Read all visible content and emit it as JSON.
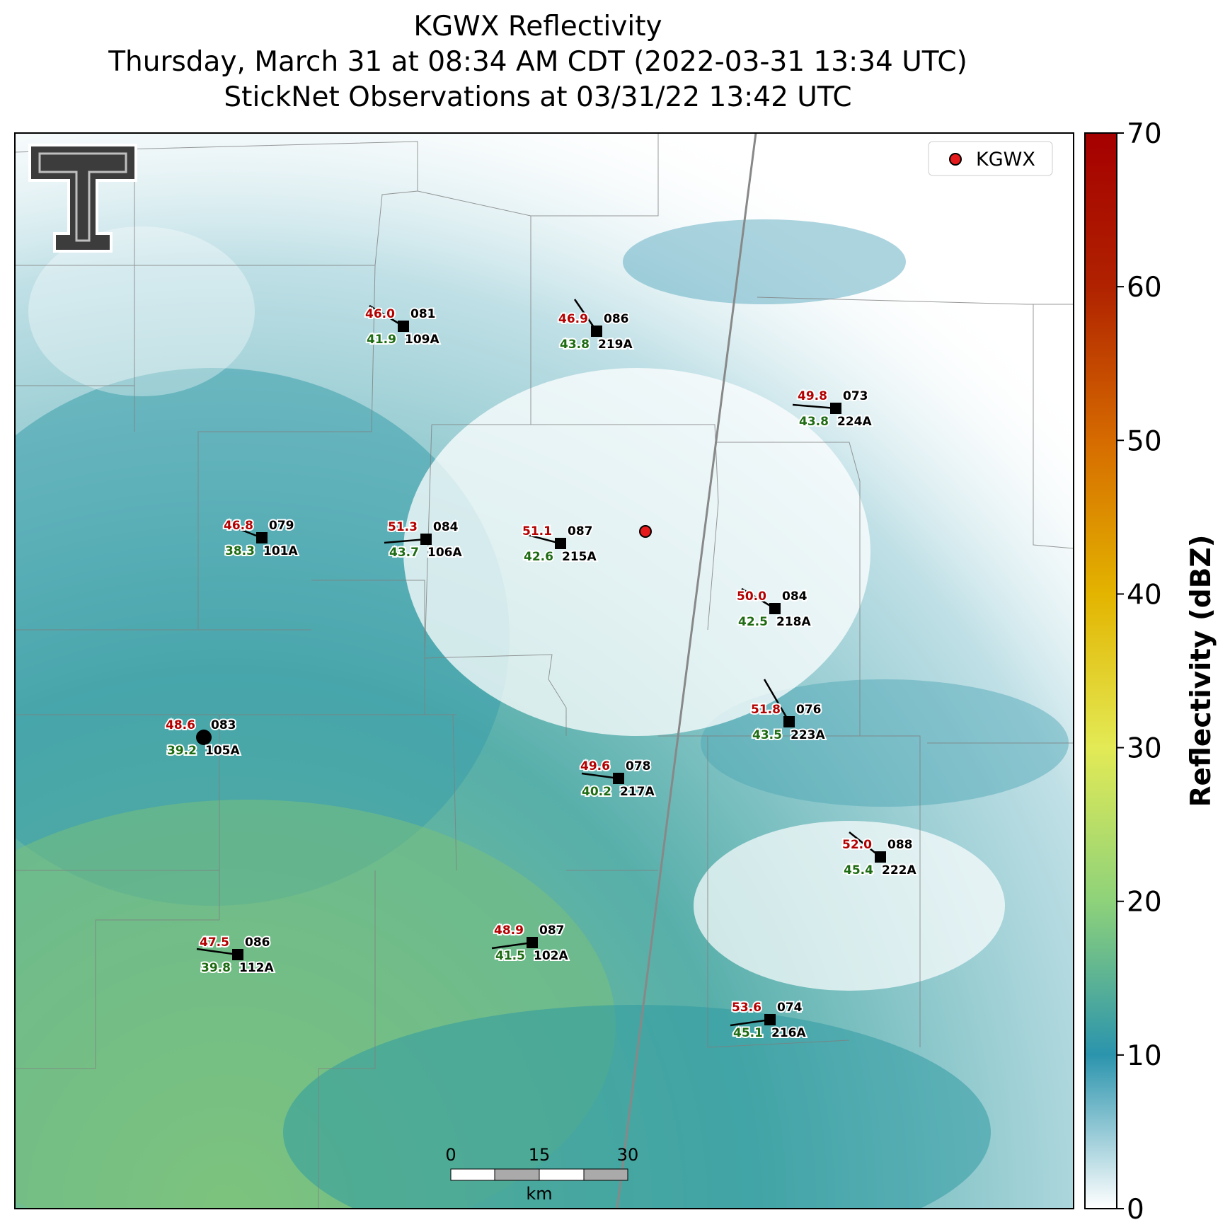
{
  "title": {
    "line1": "KGWX Reflectivity",
    "line2": "Thursday, March 31 at 08:34 AM CDT (2022-03-31 13:34 UTC)",
    "line3": "StickNet Observations at 03/31/22 13:42 UTC"
  },
  "legend": {
    "label": "KGWX"
  },
  "colorbar": {
    "label": "Reflectivity (dBZ)",
    "ticks": [
      "0",
      "10",
      "20",
      "30",
      "40",
      "50",
      "60",
      "70"
    ],
    "colors": [
      "#ffffff",
      "#2b94ad",
      "#8ed27a",
      "#e3ea55",
      "#e3b400",
      "#d66b00",
      "#b02200",
      "#a50000"
    ]
  },
  "scale_bar": {
    "ticks": [
      "0",
      "15",
      "30"
    ],
    "unit": "km"
  },
  "stations": [
    {
      "id": "109A",
      "temp": "46.0",
      "dew": "41.9",
      "dir": "081"
    },
    {
      "id": "219A",
      "temp": "46.9",
      "dew": "43.8",
      "dir": "086"
    },
    {
      "id": "224A",
      "temp": "49.8",
      "dew": "43.8",
      "dir": "073"
    },
    {
      "id": "101A",
      "temp": "46.8",
      "dew": "38.3",
      "dir": "079"
    },
    {
      "id": "106A",
      "temp": "51.3",
      "dew": "43.7",
      "dir": "084"
    },
    {
      "id": "215A",
      "temp": "51.1",
      "dew": "42.6",
      "dir": "087"
    },
    {
      "id": "218A",
      "temp": "50.0",
      "dew": "42.5",
      "dir": "084"
    },
    {
      "id": "223A",
      "temp": "51.8",
      "dew": "43.5",
      "dir": "076"
    },
    {
      "id": "105A",
      "temp": "48.6",
      "dew": "39.2",
      "dir": "083"
    },
    {
      "id": "217A",
      "temp": "49.6",
      "dew": "40.2",
      "dir": "078"
    },
    {
      "id": "222A",
      "temp": "52.0",
      "dew": "45.4",
      "dir": "088"
    },
    {
      "id": "112A",
      "temp": "47.5",
      "dew": "39.8",
      "dir": "086"
    },
    {
      "id": "102A",
      "temp": "48.9",
      "dew": "41.5",
      "dir": "087"
    },
    {
      "id": "216A",
      "temp": "53.6",
      "dew": "45.1",
      "dir": "074"
    }
  ]
}
